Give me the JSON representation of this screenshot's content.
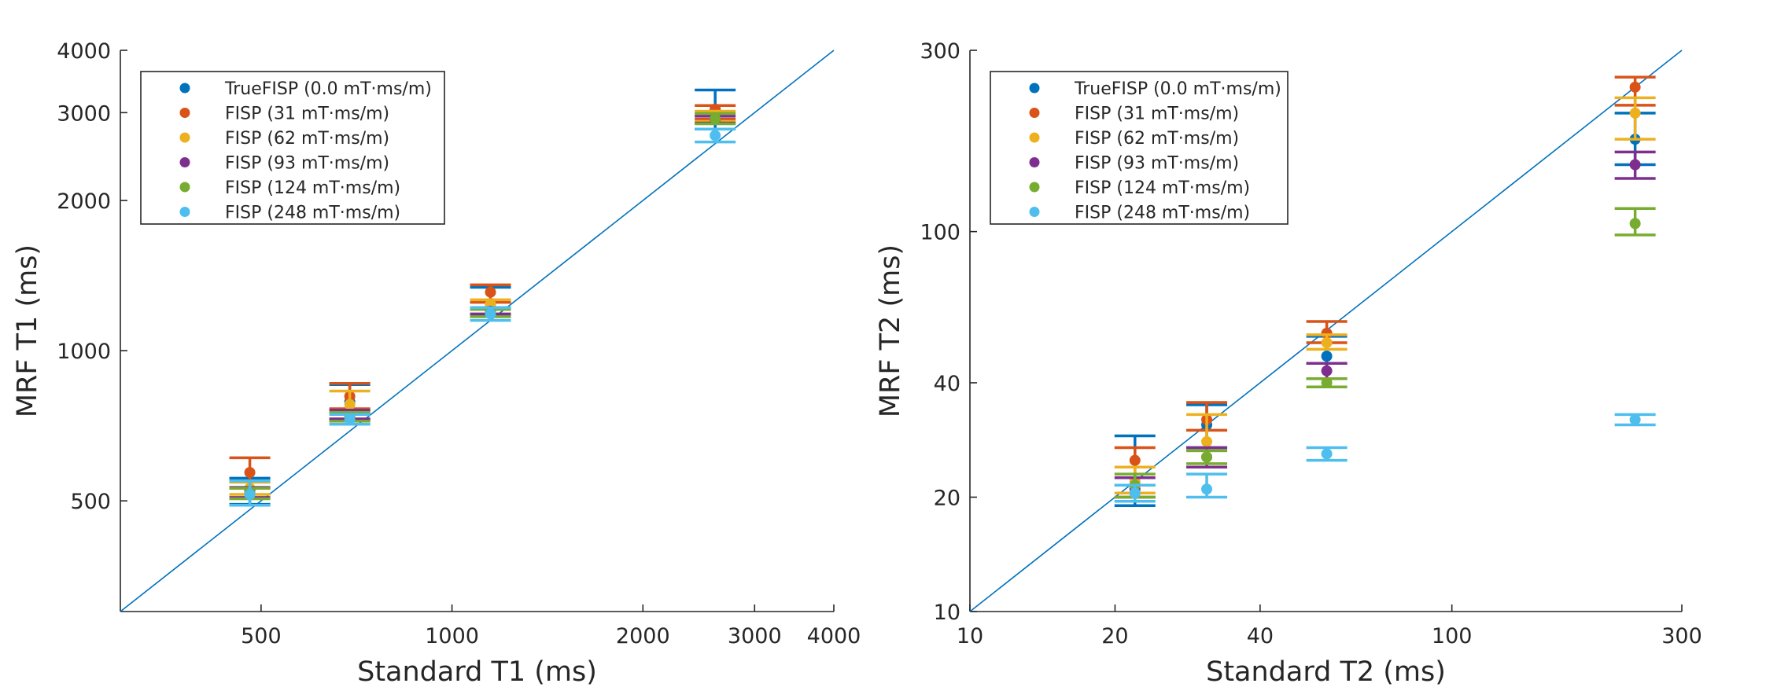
{
  "chart_data": [
    {
      "type": "scatter",
      "id": "t1",
      "xscale": "log",
      "yscale": "log",
      "xlabel": "Standard T1 (ms)",
      "ylabel": "MRF T1 (ms)",
      "xlim": [
        300,
        4000
      ],
      "ylim": [
        300,
        4000
      ],
      "xticks": [
        500,
        1000,
        2000,
        3000,
        4000
      ],
      "xtick_labels": [
        "500",
        "1000",
        "2000",
        "3000",
        "4000"
      ],
      "yticks": [
        500,
        1000,
        2000,
        3000,
        4000
      ],
      "ytick_labels": [
        "500",
        "1000",
        "2000",
        "3000",
        "4000"
      ],
      "identity_line": true,
      "legend": {
        "location": "top-left",
        "entries": [
          "TrueFISP (0.0 mT·ms/m)",
          "FISP (31 mT·ms/m)",
          "FISP (62 mT·ms/m)",
          "FISP (93 mT·ms/m)",
          "FISP (124 mT·ms/m)",
          "FISP (248 mT·ms/m)"
        ]
      },
      "series": [
        {
          "name": "TrueFISP (0.0 mT·ms/m)",
          "color": "#0072BD",
          "points": [
            {
              "x": 480,
              "y": 525,
              "lo": 492,
              "hi": 555
            },
            {
              "x": 690,
              "y": 790,
              "lo": 728,
              "hi": 855
            },
            {
              "x": 1150,
              "y": 1240,
              "lo": 1175,
              "hi": 1340
            },
            {
              "x": 2600,
              "y": 3050,
              "lo": 2780,
              "hi": 3330
            }
          ]
        },
        {
          "name": "FISP (31 mT·ms/m)",
          "color": "#D95319",
          "points": [
            {
              "x": 480,
              "y": 570,
              "lo": 530,
              "hi": 610
            },
            {
              "x": 690,
              "y": 810,
              "lo": 765,
              "hi": 860
            },
            {
              "x": 1150,
              "y": 1310,
              "lo": 1250,
              "hi": 1355
            },
            {
              "x": 2600,
              "y": 3050,
              "lo": 2910,
              "hi": 3100
            }
          ]
        },
        {
          "name": "FISP (62 mT·ms/m)",
          "color": "#EDB120",
          "points": [
            {
              "x": 480,
              "y": 530,
              "lo": 515,
              "hi": 545
            },
            {
              "x": 690,
              "y": 780,
              "lo": 755,
              "hi": 830
            },
            {
              "x": 1150,
              "y": 1240,
              "lo": 1210,
              "hi": 1265
            },
            {
              "x": 2600,
              "y": 2960,
              "lo": 2880,
              "hi": 3020
            }
          ]
        },
        {
          "name": "FISP (93 mT·ms/m)",
          "color": "#7E2F8E",
          "points": [
            {
              "x": 480,
              "y": 520,
              "lo": 508,
              "hi": 532
            },
            {
              "x": 690,
              "y": 745,
              "lo": 730,
              "hi": 760
            },
            {
              "x": 1150,
              "y": 1200,
              "lo": 1185,
              "hi": 1220
            },
            {
              "x": 2600,
              "y": 2910,
              "lo": 2860,
              "hi": 2950
            }
          ]
        },
        {
          "name": "FISP (124 mT·ms/m)",
          "color": "#77AC30",
          "points": [
            {
              "x": 480,
              "y": 518,
              "lo": 505,
              "hi": 530
            },
            {
              "x": 690,
              "y": 738,
              "lo": 722,
              "hi": 752
            },
            {
              "x": 1150,
              "y": 1190,
              "lo": 1170,
              "hi": 1210
            },
            {
              "x": 2600,
              "y": 2920,
              "lo": 2850,
              "hi": 2990
            }
          ]
        },
        {
          "name": "FISP (248 mT·ms/m)",
          "color": "#4DBEEE",
          "points": [
            {
              "x": 480,
              "y": 515,
              "lo": 490,
              "hi": 548
            },
            {
              "x": 690,
              "y": 728,
              "lo": 712,
              "hi": 745
            },
            {
              "x": 1150,
              "y": 1185,
              "lo": 1150,
              "hi": 1220
            },
            {
              "x": 2600,
              "y": 2700,
              "lo": 2620,
              "hi": 2780
            }
          ]
        }
      ]
    },
    {
      "type": "scatter",
      "id": "t2",
      "xscale": "log",
      "yscale": "log",
      "xlabel": "Standard T2 (ms)",
      "ylabel": "MRF T2 (ms)",
      "xlim": [
        10,
        300
      ],
      "ylim": [
        10,
        300
      ],
      "xticks": [
        10,
        20,
        40,
        100,
        300
      ],
      "xtick_labels": [
        "10",
        "20",
        "40",
        "100",
        "300"
      ],
      "yticks": [
        10,
        20,
        40,
        100,
        300
      ],
      "ytick_labels": [
        "10",
        "20",
        "40",
        "100",
        "300"
      ],
      "identity_line": true,
      "legend": {
        "location": "top-left",
        "entries": [
          "TrueFISP (0.0 mT·ms/m)",
          "FISP (31 mT·ms/m)",
          "FISP (62 mT·ms/m)",
          "FISP (93 mT·ms/m)",
          "FISP (124 mT·ms/m)",
          "FISP (248 mT·ms/m)"
        ]
      },
      "series": [
        {
          "name": "TrueFISP (0.0 mT·ms/m)",
          "color": "#0072BD",
          "points": [
            {
              "x": 22,
              "y": 20.5,
              "lo": 19,
              "hi": 29
            },
            {
              "x": 31,
              "y": 31,
              "lo": 27,
              "hi": 35
            },
            {
              "x": 55,
              "y": 47,
              "lo": 45,
              "hi": 53
            },
            {
              "x": 240,
              "y": 175,
              "lo": 150,
              "hi": 205
            }
          ]
        },
        {
          "name": "FISP (31 mT·ms/m)",
          "color": "#D95319",
          "points": [
            {
              "x": 22,
              "y": 25,
              "lo": 21.5,
              "hi": 27
            },
            {
              "x": 31,
              "y": 32,
              "lo": 30,
              "hi": 35.5
            },
            {
              "x": 55,
              "y": 54,
              "lo": 51,
              "hi": 58
            },
            {
              "x": 240,
              "y": 240,
              "lo": 215,
              "hi": 255
            }
          ]
        },
        {
          "name": "FISP (62 mT·ms/m)",
          "color": "#EDB120",
          "points": [
            {
              "x": 22,
              "y": 22,
              "lo": 20.5,
              "hi": 24
            },
            {
              "x": 31,
              "y": 28,
              "lo": 26.5,
              "hi": 33
            },
            {
              "x": 55,
              "y": 51,
              "lo": 49,
              "hi": 53.5
            },
            {
              "x": 240,
              "y": 205,
              "lo": 175,
              "hi": 225
            }
          ]
        },
        {
          "name": "FISP (93 mT·ms/m)",
          "color": "#7E2F8E",
          "points": [
            {
              "x": 22,
              "y": 21,
              "lo": 20,
              "hi": 22.5
            },
            {
              "x": 31,
              "y": 25.5,
              "lo": 24,
              "hi": 27
            },
            {
              "x": 55,
              "y": 43,
              "lo": 41,
              "hi": 45
            },
            {
              "x": 240,
              "y": 150,
              "lo": 138,
              "hi": 162
            }
          ]
        },
        {
          "name": "FISP (124 mT·ms/m)",
          "color": "#77AC30",
          "points": [
            {
              "x": 22,
              "y": 21.5,
              "lo": 20,
              "hi": 23
            },
            {
              "x": 31,
              "y": 25.5,
              "lo": 24.5,
              "hi": 26.5
            },
            {
              "x": 55,
              "y": 40,
              "lo": 39,
              "hi": 41
            },
            {
              "x": 240,
              "y": 105,
              "lo": 98,
              "hi": 115
            }
          ]
        },
        {
          "name": "FISP (248 mT·ms/m)",
          "color": "#4DBEEE",
          "points": [
            {
              "x": 22,
              "y": 20.5,
              "lo": 19.5,
              "hi": 21.5
            },
            {
              "x": 31,
              "y": 21,
              "lo": 20,
              "hi": 23
            },
            {
              "x": 55,
              "y": 26,
              "lo": 25,
              "hi": 27
            },
            {
              "x": 240,
              "y": 32,
              "lo": 31,
              "hi": 33
            }
          ]
        }
      ]
    }
  ]
}
